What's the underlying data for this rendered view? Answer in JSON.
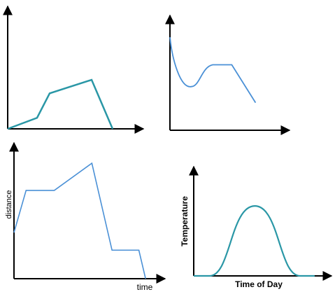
{
  "chart_data": [
    {
      "type": "line",
      "title": "",
      "xlabel": "",
      "ylabel": "",
      "line_color": "#2a97a6",
      "axis_color": "#000000",
      "series": [
        {
          "x": [
            0,
            0.28,
            0.4,
            0.8,
            1.0
          ],
          "y": [
            0,
            0.09,
            0.29,
            0.4,
            0
          ]
        }
      ]
    },
    {
      "type": "line",
      "title": "",
      "xlabel": "",
      "ylabel": "",
      "line_color": "#4a90d6",
      "axis_color": "#000000",
      "series": [
        {
          "x": [
            0,
            0.04,
            0.12,
            0.18,
            0.36,
            0.52,
            0.72
          ],
          "y": [
            0.81,
            0.62,
            0.41,
            0.38,
            0.57,
            0.57,
            0.24
          ]
        }
      ]
    },
    {
      "type": "line",
      "title": "",
      "xlabel": "time",
      "ylabel": "distance",
      "line_color": "#4a90d6",
      "axis_color": "#000000",
      "series": [
        {
          "x": [
            0,
            0.09,
            0.3,
            0.58,
            0.73,
            0.93,
            0.98
          ],
          "y": [
            0.34,
            0.65,
            0.65,
            0.85,
            0.21,
            0.21,
            0
          ]
        }
      ]
    },
    {
      "type": "line",
      "title": "",
      "xlabel": "Time of Day",
      "ylabel": "Temperature",
      "line_color": "#2a97a6",
      "axis_color": "#000000",
      "series": [
        {
          "x": [
            0,
            0.12,
            0.46,
            0.8,
            0.91
          ],
          "y": [
            0,
            0,
            0.64,
            0,
            0
          ],
          "shape": "bell"
        }
      ]
    }
  ]
}
